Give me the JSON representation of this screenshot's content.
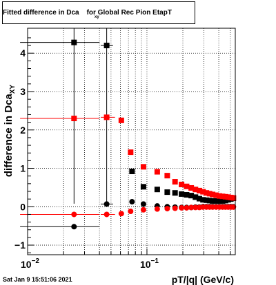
{
  "chart_data": {
    "type": "scatter",
    "title": "Fitted difference in Dca",
    "title_subscript": "xy",
    "title_suffix": "for Global Rec Pion EtapT",
    "xlabel": "pT/|q| (GeV/c)",
    "ylabel_main": "difference in Dca",
    "ylabel_subscript": "XY",
    "x_scale": "log",
    "xlim": [
      0.01,
      0.55
    ],
    "ylim": [
      -1.25,
      4.65
    ],
    "yticks": [
      -1,
      0,
      1,
      2,
      3,
      4
    ],
    "ytick_labels": [
      "−1",
      "0",
      "1",
      "2",
      "3",
      "4"
    ],
    "xticks": [
      0.01,
      0.1
    ],
    "xtick_labels": [
      {
        "base": "10",
        "exp": "−2"
      },
      {
        "base": "10",
        "exp": "−1"
      }
    ],
    "grid": true,
    "series": [
      {
        "color": "#000000",
        "marker": "square",
        "points": [
          {
            "x": 0.0245,
            "y": 4.28,
            "xlo": 0.00865,
            "xhi": 0.04,
            "yerr": 4.2
          },
          {
            "x": 0.046,
            "y": 4.2,
            "xlo": 0.041,
            "xhi": 0.052,
            "yerr": 4.2
          },
          {
            "x": 0.075,
            "y": 0.92,
            "yerr": 0.06
          },
          {
            "x": 0.0935,
            "y": 0.52,
            "yerr": 0.04
          },
          {
            "x": 0.122,
            "y": 0.45
          },
          {
            "x": 0.148,
            "y": 0.38
          },
          {
            "x": 0.172,
            "y": 0.36
          },
          {
            "x": 0.195,
            "y": 0.33
          },
          {
            "x": 0.215,
            "y": 0.31
          },
          {
            "x": 0.235,
            "y": 0.29
          },
          {
            "x": 0.255,
            "y": 0.25
          },
          {
            "x": 0.275,
            "y": 0.21
          },
          {
            "x": 0.295,
            "y": 0.18
          },
          {
            "x": 0.315,
            "y": 0.17
          },
          {
            "x": 0.335,
            "y": 0.16
          },
          {
            "x": 0.355,
            "y": 0.15
          },
          {
            "x": 0.38,
            "y": 0.15
          },
          {
            "x": 0.405,
            "y": 0.15
          },
          {
            "x": 0.43,
            "y": 0.15
          },
          {
            "x": 0.455,
            "y": 0.16
          },
          {
            "x": 0.48,
            "y": 0.18
          },
          {
            "x": 0.505,
            "y": 0.2
          },
          {
            "x": 0.53,
            "y": 0.22
          }
        ]
      },
      {
        "color": "#ff0000",
        "marker": "square",
        "points": [
          {
            "x": 0.0245,
            "y": 2.3,
            "xlo": 0.00865,
            "xhi": 0.04
          },
          {
            "x": 0.046,
            "y": 2.33,
            "xlo": 0.041,
            "xhi": 0.054
          },
          {
            "x": 0.061,
            "y": 2.25
          },
          {
            "x": 0.073,
            "y": 1.42
          },
          {
            "x": 0.0935,
            "y": 1.04
          },
          {
            "x": 0.122,
            "y": 0.91
          },
          {
            "x": 0.148,
            "y": 0.81
          },
          {
            "x": 0.172,
            "y": 0.65
          },
          {
            "x": 0.195,
            "y": 0.58
          },
          {
            "x": 0.215,
            "y": 0.53
          },
          {
            "x": 0.235,
            "y": 0.49
          },
          {
            "x": 0.255,
            "y": 0.45
          },
          {
            "x": 0.275,
            "y": 0.42
          },
          {
            "x": 0.295,
            "y": 0.39
          },
          {
            "x": 0.315,
            "y": 0.36
          },
          {
            "x": 0.335,
            "y": 0.34
          },
          {
            "x": 0.355,
            "y": 0.32
          },
          {
            "x": 0.38,
            "y": 0.3
          },
          {
            "x": 0.405,
            "y": 0.28
          },
          {
            "x": 0.43,
            "y": 0.27
          },
          {
            "x": 0.455,
            "y": 0.26
          },
          {
            "x": 0.48,
            "y": 0.25
          },
          {
            "x": 0.505,
            "y": 0.24
          },
          {
            "x": 0.53,
            "y": 0.23
          }
        ]
      },
      {
        "color": "#000000",
        "marker": "circle",
        "points": [
          {
            "x": 0.0245,
            "y": -0.52,
            "xlo": 0.00865,
            "xhi": 0.04
          },
          {
            "x": 0.046,
            "y": 0.07,
            "xlo": 0.041,
            "xhi": 0.052
          },
          {
            "x": 0.075,
            "y": 0.13
          },
          {
            "x": 0.0935,
            "y": 0.07
          },
          {
            "x": 0.122,
            "y": 0.02
          },
          {
            "x": 0.148,
            "y": 0.0
          },
          {
            "x": 0.172,
            "y": -0.01
          },
          {
            "x": 0.195,
            "y": -0.02
          },
          {
            "x": 0.215,
            "y": -0.02
          },
          {
            "x": 0.235,
            "y": -0.02
          },
          {
            "x": 0.255,
            "y": -0.01
          },
          {
            "x": 0.275,
            "y": -0.01
          },
          {
            "x": 0.295,
            "y": 0.0
          },
          {
            "x": 0.315,
            "y": 0.0
          },
          {
            "x": 0.335,
            "y": 0.0
          },
          {
            "x": 0.355,
            "y": 0.0
          },
          {
            "x": 0.38,
            "y": 0.0
          },
          {
            "x": 0.405,
            "y": 0.0
          },
          {
            "x": 0.43,
            "y": 0.0
          },
          {
            "x": 0.455,
            "y": 0.0
          },
          {
            "x": 0.48,
            "y": 0.0
          },
          {
            "x": 0.505,
            "y": 0.0
          },
          {
            "x": 0.53,
            "y": 0.0
          }
        ]
      },
      {
        "color": "#ff0000",
        "marker": "circle",
        "points": [
          {
            "x": 0.0245,
            "y": -0.2,
            "xlo": 0.00865,
            "xhi": 0.04
          },
          {
            "x": 0.046,
            "y": -0.2,
            "xlo": 0.041,
            "xhi": 0.054
          },
          {
            "x": 0.061,
            "y": -0.18
          },
          {
            "x": 0.073,
            "y": -0.12
          },
          {
            "x": 0.0935,
            "y": -0.08
          },
          {
            "x": 0.122,
            "y": -0.06
          },
          {
            "x": 0.148,
            "y": -0.05
          },
          {
            "x": 0.172,
            "y": -0.04
          },
          {
            "x": 0.195,
            "y": -0.03
          },
          {
            "x": 0.215,
            "y": -0.03
          },
          {
            "x": 0.235,
            "y": -0.02
          },
          {
            "x": 0.255,
            "y": -0.02
          },
          {
            "x": 0.275,
            "y": -0.02
          },
          {
            "x": 0.295,
            "y": -0.01
          },
          {
            "x": 0.315,
            "y": -0.01
          },
          {
            "x": 0.335,
            "y": -0.01
          },
          {
            "x": 0.355,
            "y": -0.01
          },
          {
            "x": 0.38,
            "y": -0.01
          },
          {
            "x": 0.405,
            "y": -0.01
          },
          {
            "x": 0.43,
            "y": -0.01
          },
          {
            "x": 0.455,
            "y": -0.01
          },
          {
            "x": 0.48,
            "y": -0.01
          },
          {
            "x": 0.505,
            "y": -0.01
          },
          {
            "x": 0.53,
            "y": -0.01
          }
        ]
      }
    ]
  },
  "footer": {
    "timestamp": "Sat Jan  9 15:51:06 2021"
  }
}
